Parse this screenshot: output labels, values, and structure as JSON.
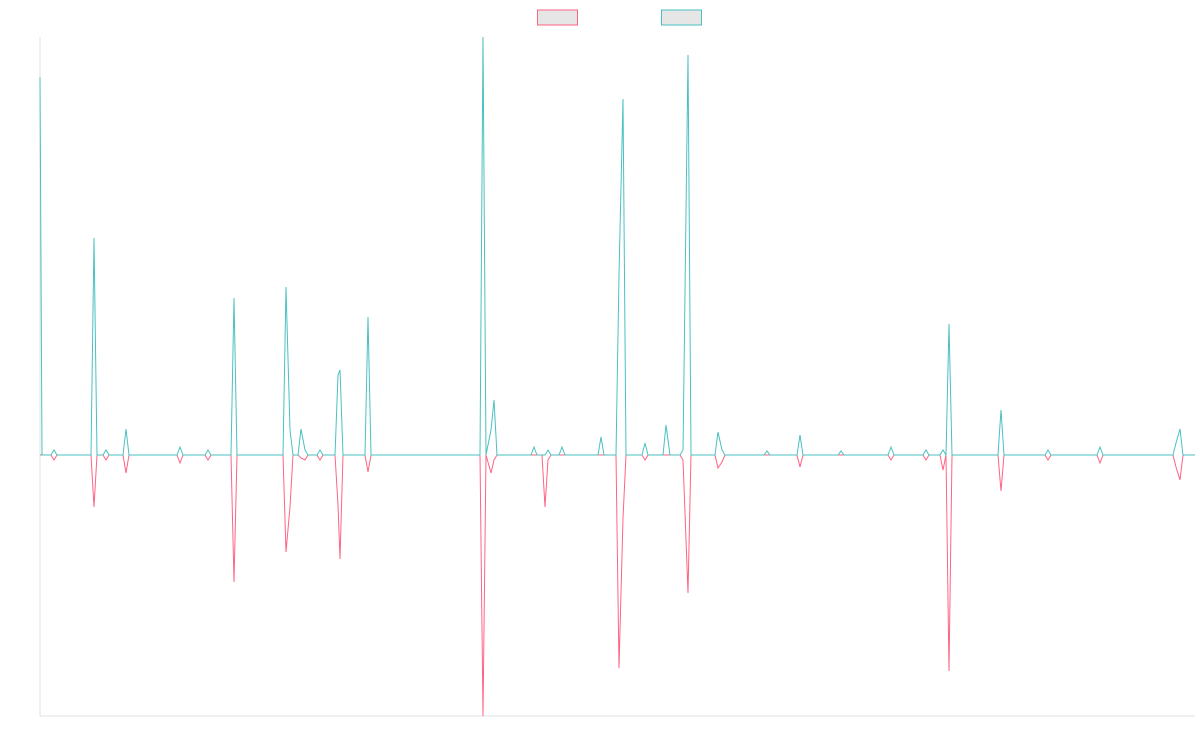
{
  "chart_data": {
    "type": "line",
    "x": [
      0,
      2,
      11,
      14,
      17,
      51,
      54,
      57,
      63,
      66,
      69,
      83,
      86,
      89,
      137,
      140,
      143,
      165,
      168,
      171,
      191,
      194,
      197,
      243,
      246,
      250,
      253,
      258,
      261,
      265,
      268,
      277,
      280,
      283,
      295,
      298,
      300,
      303,
      325,
      328,
      331,
      440,
      443,
      446,
      451,
      454,
      457,
      491,
      494,
      497,
      502,
      505,
      508,
      511,
      519,
      522,
      525,
      558,
      561,
      564,
      576,
      579,
      583,
      586,
      602,
      605,
      608,
      623,
      626,
      630,
      640,
      643,
      648,
      651,
      675,
      678,
      682,
      685,
      724,
      727,
      730,
      757,
      760,
      763,
      798,
      801,
      804,
      848,
      851,
      854,
      883,
      886,
      889,
      900,
      903,
      906,
      909,
      912,
      958,
      961,
      964,
      1005,
      1008,
      1011,
      1057,
      1060,
      1063,
      1133,
      1136,
      1140,
      1143,
      1155
    ],
    "series": [
      {
        "color": "#ff6384",
        "values": [
          0,
          0,
          0,
          -5,
          0,
          0,
          -52,
          0,
          0,
          -5,
          0,
          0,
          -18,
          0,
          0,
          -8,
          0,
          0,
          -5,
          0,
          0,
          -127,
          0,
          0,
          -97,
          -52,
          0,
          0,
          -3,
          -5,
          0,
          0,
          -5,
          0,
          0,
          -50,
          -104,
          0,
          0,
          -17,
          0,
          0,
          -261,
          0,
          -18,
          -5,
          0,
          0,
          0,
          0,
          0,
          -52,
          -5,
          0,
          0,
          0,
          0,
          0,
          0,
          0,
          0,
          -213,
          -63,
          0,
          0,
          -5,
          0,
          0,
          0,
          0,
          0,
          -5,
          -138,
          0,
          0,
          -13,
          -7,
          0,
          0,
          0,
          0,
          0,
          -12,
          0,
          0,
          0,
          0,
          0,
          -5,
          0,
          0,
          -5,
          0,
          0,
          -15,
          0,
          -216,
          0,
          0,
          -36,
          0,
          0,
          -5,
          0,
          0,
          -8,
          0,
          0,
          -12,
          -25,
          0,
          0
        ]
      },
      {
        "color": "#4bc0c0",
        "values": [
          378,
          0,
          0,
          5,
          0,
          0,
          217,
          0,
          0,
          5,
          0,
          0,
          26,
          0,
          0,
          8,
          0,
          0,
          5,
          0,
          0,
          157,
          0,
          0,
          168,
          25,
          0,
          0,
          26,
          5,
          0,
          0,
          5,
          0,
          0,
          80,
          85,
          0,
          0,
          138,
          0,
          0,
          418,
          0,
          25,
          55,
          0,
          0,
          8,
          0,
          0,
          0,
          5,
          0,
          0,
          8,
          0,
          0,
          18,
          0,
          0,
          180,
          356,
          0,
          0,
          12,
          0,
          0,
          30,
          0,
          0,
          5,
          400,
          0,
          0,
          23,
          5,
          0,
          0,
          4,
          0,
          0,
          20,
          0,
          0,
          4,
          0,
          0,
          8,
          0,
          0,
          5,
          0,
          0,
          5,
          0,
          131,
          0,
          0,
          45,
          0,
          0,
          5,
          0,
          0,
          8,
          0,
          0,
          12,
          26,
          0,
          0
        ]
      }
    ],
    "xlim": [
      0,
      1155
    ],
    "ylim": [
      -261,
      418
    ],
    "legend": "top"
  }
}
